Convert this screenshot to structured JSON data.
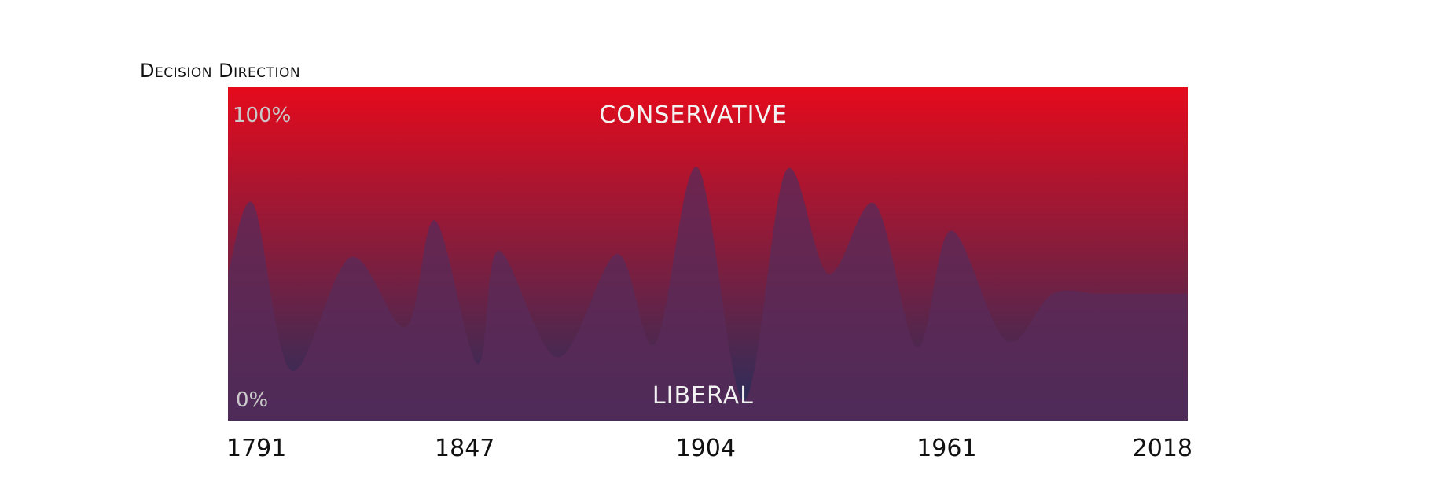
{
  "chart_data": {
    "type": "area",
    "title": "Decision Direction",
    "x": [
      1791,
      1797,
      1806,
      1820,
      1833,
      1840,
      1850,
      1855,
      1869,
      1883,
      1892,
      1902,
      1913,
      1923,
      1933,
      1944,
      1954,
      1962,
      1975,
      1986,
      1997,
      2010,
      2018
    ],
    "y": [
      44,
      65,
      15,
      49,
      28,
      60,
      17,
      51,
      19,
      50,
      23,
      76,
      6,
      75,
      44,
      65,
      22,
      57,
      24,
      38,
      38,
      38,
      38
    ],
    "xticks": [
      "1791",
      "1847",
      "1904",
      "1961",
      "2018"
    ],
    "ytick_top": "100%",
    "ytick_bottom": "0%",
    "ylim": [
      0,
      100
    ],
    "band_top_label": "CONSERVATIVE",
    "band_bottom_label": "LIBERAL",
    "colors": {
      "conservative": "#e50a1c",
      "liberal": "#22305e",
      "area": "#5a2a58"
    }
  }
}
